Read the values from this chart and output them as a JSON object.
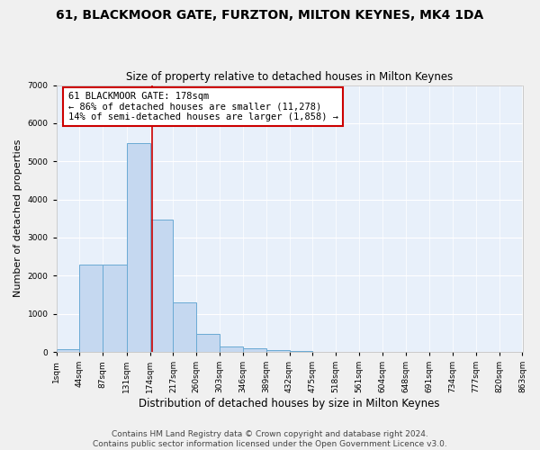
{
  "title": "61, BLACKMOOR GATE, FURZTON, MILTON KEYNES, MK4 1DA",
  "subtitle": "Size of property relative to detached houses in Milton Keynes",
  "xlabel": "Distribution of detached houses by size in Milton Keynes",
  "ylabel": "Number of detached properties",
  "bin_edges": [
    1,
    44,
    87,
    131,
    174,
    217,
    260,
    303,
    346,
    389,
    432,
    475,
    518,
    561,
    604,
    648,
    691,
    734,
    777,
    820,
    863
  ],
  "bar_heights": [
    80,
    2280,
    2280,
    5470,
    3470,
    1310,
    470,
    150,
    90,
    55,
    30,
    5,
    0,
    0,
    0,
    0,
    0,
    0,
    0,
    0
  ],
  "bar_color": "#c5d8f0",
  "bar_edgecolor": "#6aaad4",
  "bg_color": "#e8f0fa",
  "grid_color": "#ffffff",
  "property_size": 178,
  "property_label": "61 BLACKMOOR GATE: 178sqm",
  "annotation_line1": "← 86% of detached houses are smaller (11,278)",
  "annotation_line2": "14% of semi-detached houses are larger (1,858) →",
  "vline_color": "#cc0000",
  "annotation_box_edgecolor": "#cc0000",
  "annotation_box_facecolor": "#ffffff",
  "ylim": [
    0,
    7000
  ],
  "yticks": [
    0,
    1000,
    2000,
    3000,
    4000,
    5000,
    6000,
    7000
  ],
  "footer_line1": "Contains HM Land Registry data © Crown copyright and database right 2024.",
  "footer_line2": "Contains public sector information licensed under the Open Government Licence v3.0.",
  "title_fontsize": 10,
  "subtitle_fontsize": 8.5,
  "tick_label_fontsize": 6.5,
  "ylabel_fontsize": 8,
  "xlabel_fontsize": 8.5,
  "footer_fontsize": 6.5,
  "annotation_fontsize": 7.5
}
